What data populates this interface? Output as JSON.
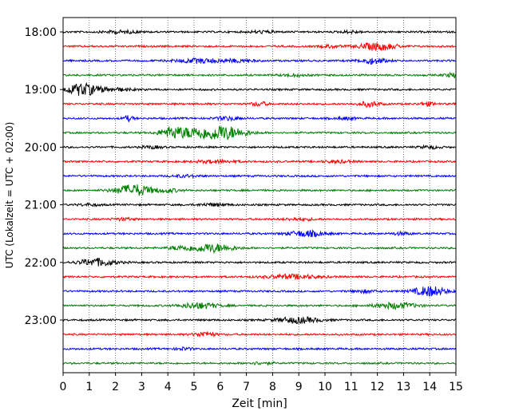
{
  "chart_data": {
    "type": "line",
    "title": "",
    "xlabel": "Zeit  [min]",
    "ylabel": "UTC (Lokalzeit = UTC + 02:00)",
    "xlim": [
      0,
      15
    ],
    "x_ticks": [
      0,
      1,
      2,
      3,
      4,
      5,
      6,
      7,
      8,
      9,
      10,
      11,
      12,
      13,
      14,
      15
    ],
    "y_tick_labels": [
      "18:00",
      "19:00",
      "20:00",
      "21:00",
      "22:00",
      "23:00"
    ],
    "y_tick_rows": [
      0,
      4,
      8,
      12,
      16,
      20
    ],
    "grid": {
      "x": true,
      "style": "dotted",
      "y": false
    },
    "legend": "none",
    "row_interval_minutes": 15,
    "row_colors": [
      "#000000",
      "#ff0000",
      "#0000ff",
      "#008000"
    ],
    "rows": [
      {
        "start": "18:00",
        "color": "#000000",
        "events": [
          [
            2.2,
            0.7,
            1.5
          ],
          [
            7.6,
            0.5,
            1.3
          ],
          [
            11.0,
            0.4,
            1.3
          ]
        ]
      },
      {
        "start": "18:15",
        "color": "#ff0000",
        "events": [
          [
            12.0,
            0.7,
            4.5
          ],
          [
            10.2,
            0.4,
            1.5
          ]
        ]
      },
      {
        "start": "18:30",
        "color": "#0000ff",
        "events": [
          [
            5.2,
            0.9,
            2.5
          ],
          [
            11.8,
            0.5,
            3.5
          ],
          [
            6.7,
            0.6,
            1.5
          ]
        ]
      },
      {
        "start": "18:45",
        "color": "#008000",
        "events": [
          [
            14.9,
            0.3,
            2.5
          ],
          [
            8.8,
            0.5,
            1.3
          ]
        ]
      },
      {
        "start": "19:00",
        "color": "#000000",
        "events": [
          [
            0.7,
            0.6,
            7.0
          ],
          [
            1.8,
            0.8,
            2.0
          ]
        ]
      },
      {
        "start": "19:15",
        "color": "#ff0000",
        "events": [
          [
            11.7,
            0.4,
            3.0
          ],
          [
            7.5,
            0.3,
            2.5
          ],
          [
            13.9,
            0.3,
            2.0
          ]
        ]
      },
      {
        "start": "19:30",
        "color": "#0000ff",
        "events": [
          [
            2.5,
            0.2,
            3.0
          ],
          [
            6.3,
            0.5,
            2.0
          ],
          [
            10.8,
            0.4,
            1.3
          ]
        ]
      },
      {
        "start": "19:45",
        "color": "#008000",
        "events": [
          [
            4.2,
            0.5,
            7.0
          ],
          [
            6.0,
            0.9,
            9.0
          ],
          [
            5.0,
            0.4,
            4.0
          ]
        ]
      },
      {
        "start": "20:00",
        "color": "#000000",
        "events": [
          [
            3.4,
            0.4,
            1.5
          ],
          [
            14.0,
            0.4,
            1.5
          ]
        ]
      },
      {
        "start": "20:15",
        "color": "#ff0000",
        "events": [
          [
            5.8,
            0.8,
            1.5
          ],
          [
            10.5,
            0.6,
            1.3
          ]
        ]
      },
      {
        "start": "20:30",
        "color": "#0000ff",
        "events": [
          [
            4.7,
            0.5,
            1.3
          ]
        ]
      },
      {
        "start": "20:45",
        "color": "#008000",
        "events": [
          [
            2.7,
            0.7,
            7.0
          ],
          [
            4.0,
            0.5,
            1.8
          ]
        ]
      },
      {
        "start": "21:00",
        "color": "#000000",
        "events": [
          [
            5.7,
            0.6,
            1.5
          ],
          [
            1.0,
            0.4,
            1.3
          ]
        ]
      },
      {
        "start": "21:15",
        "color": "#ff0000",
        "events": [
          [
            2.3,
            0.4,
            1.3
          ],
          [
            9.0,
            0.6,
            1.3
          ]
        ]
      },
      {
        "start": "21:30",
        "color": "#0000ff",
        "events": [
          [
            9.3,
            0.7,
            3.5
          ],
          [
            12.9,
            0.4,
            1.5
          ]
        ]
      },
      {
        "start": "21:45",
        "color": "#008000",
        "events": [
          [
            5.7,
            0.8,
            5.0
          ],
          [
            4.5,
            0.5,
            2.0
          ]
        ]
      },
      {
        "start": "22:00",
        "color": "#000000",
        "events": [
          [
            1.3,
            0.7,
            4.5
          ]
        ]
      },
      {
        "start": "22:15",
        "color": "#ff0000",
        "events": [
          [
            8.8,
            1.0,
            2.5
          ]
        ]
      },
      {
        "start": "22:30",
        "color": "#0000ff",
        "events": [
          [
            14.0,
            0.6,
            6.0
          ],
          [
            11.5,
            0.5,
            1.5
          ]
        ]
      },
      {
        "start": "22:45",
        "color": "#008000",
        "events": [
          [
            5.2,
            0.7,
            3.5
          ],
          [
            12.7,
            0.8,
            3.5
          ]
        ]
      },
      {
        "start": "23:00",
        "color": "#000000",
        "events": [
          [
            9.0,
            0.8,
            3.5
          ]
        ]
      },
      {
        "start": "23:15",
        "color": "#ff0000",
        "events": [
          [
            5.4,
            0.4,
            3.0
          ]
        ]
      },
      {
        "start": "23:30",
        "color": "#0000ff",
        "events": [
          [
            4.6,
            0.3,
            1.5
          ]
        ]
      },
      {
        "start": "23:45",
        "color": "#008000",
        "events": [
          [
            7.5,
            0.5,
            1.2
          ]
        ]
      }
    ]
  }
}
